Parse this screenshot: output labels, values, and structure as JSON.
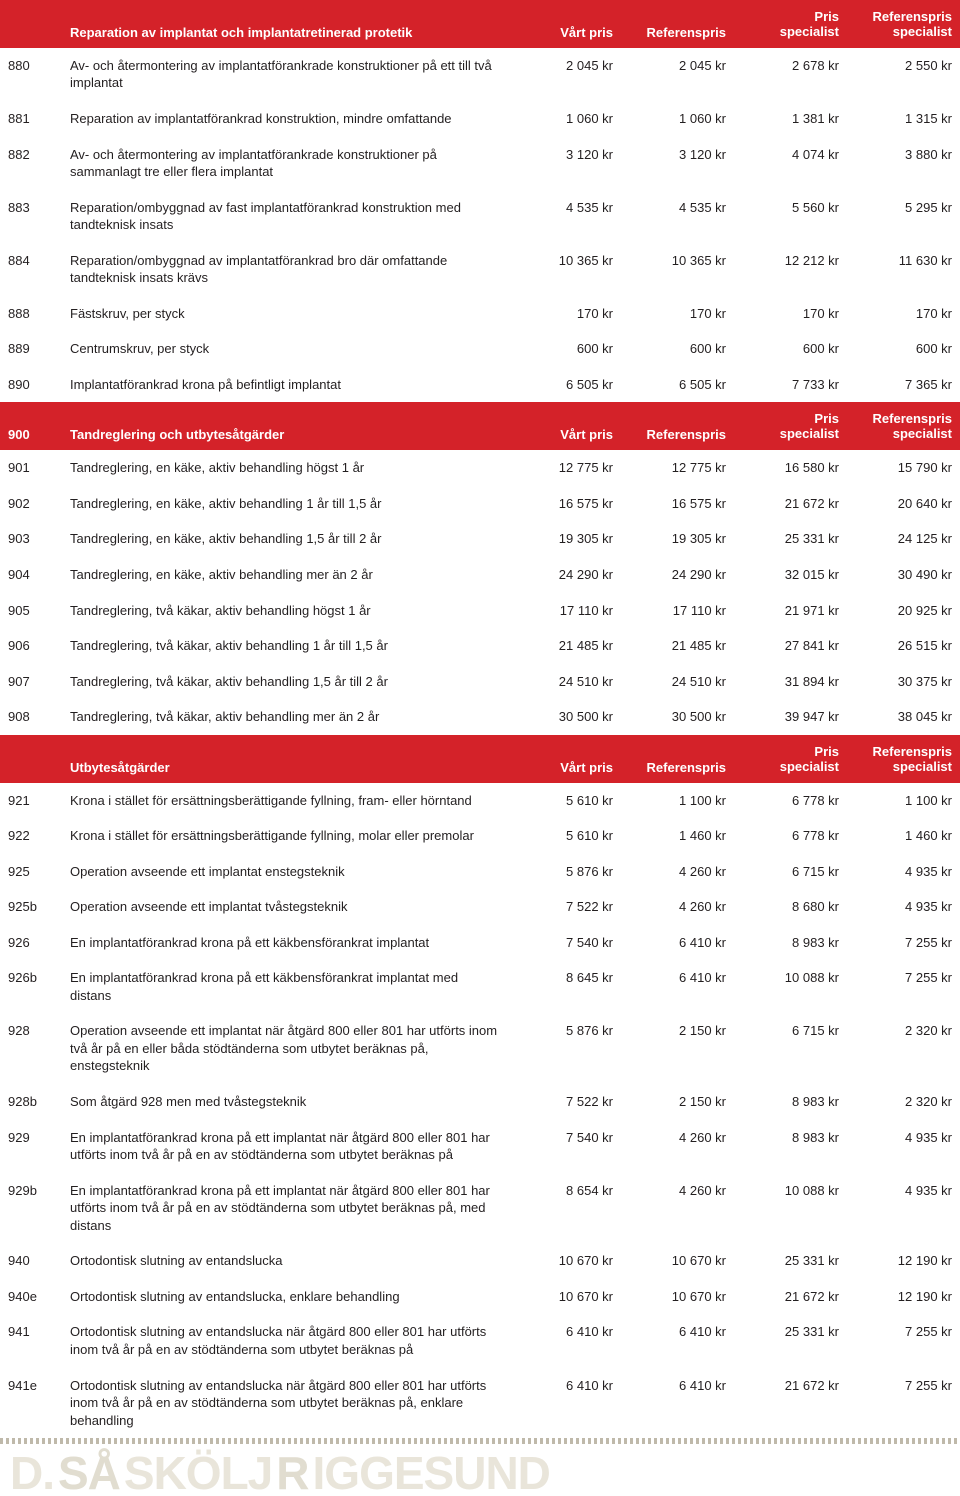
{
  "colors": {
    "header_bg": "#d42229",
    "header_fg": "#ffffff",
    "body_fg": "#231f20",
    "ghost": "#e9e5da"
  },
  "columns": {
    "code": "",
    "desc": "",
    "c1": "Vårt pris",
    "c2": "Referenspris",
    "c3a": "Pris",
    "c3b": "specialist",
    "c4a": "Referenspris",
    "c4b": "specialist"
  },
  "sections": [
    {
      "code": "",
      "title": "Reparation av implantat och implantatretinerad protetik",
      "rows": [
        {
          "code": "880",
          "desc": "Av- och återmontering av implantatförankrade konstruktioner på ett till två implantat",
          "p": [
            "2 045 kr",
            "2 045 kr",
            "2 678 kr",
            "2 550 kr"
          ]
        },
        {
          "code": "881",
          "desc": "Reparation av implantatförankrad konstruktion, mindre omfattande",
          "p": [
            "1 060 kr",
            "1 060 kr",
            "1 381 kr",
            "1 315 kr"
          ]
        },
        {
          "code": "882",
          "desc": "Av- och återmontering av implantatförankrade konstruktioner på sammanlagt tre eller flera implantat",
          "p": [
            "3 120 kr",
            "3 120 kr",
            "4 074 kr",
            "3 880 kr"
          ]
        },
        {
          "code": "883",
          "desc": "Reparation/ombyggnad av fast implantatförankrad konstruktion med tandteknisk insats",
          "p": [
            "4 535 kr",
            "4 535 kr",
            "5 560 kr",
            "5 295 kr"
          ]
        },
        {
          "code": "884",
          "desc": "Reparation/ombyggnad av implantatförankrad bro där omfattande tandteknisk insats krävs",
          "p": [
            "10 365 kr",
            "10 365 kr",
            "12 212 kr",
            "11 630 kr"
          ]
        },
        {
          "code": "888",
          "desc": "Fästskruv, per styck",
          "p": [
            "170 kr",
            "170 kr",
            "170 kr",
            "170 kr"
          ]
        },
        {
          "code": "889",
          "desc": "Centrumskruv, per styck",
          "p": [
            "600 kr",
            "600 kr",
            "600 kr",
            "600 kr"
          ]
        },
        {
          "code": "890",
          "desc": "Implantatförankrad krona på befintligt implantat",
          "p": [
            "6 505 kr",
            "6 505 kr",
            "7 733 kr",
            "7 365 kr"
          ]
        }
      ]
    },
    {
      "code": "900",
      "title": "Tandreglering och utbytesåtgärder",
      "rows": [
        {
          "code": "901",
          "desc": "Tandreglering, en käke, aktiv behandling högst 1 år",
          "p": [
            "12 775 kr",
            "12 775 kr",
            "16 580 kr",
            "15 790 kr"
          ]
        },
        {
          "code": "902",
          "desc": "Tandreglering, en käke, aktiv behandling 1 år till 1,5 år",
          "p": [
            "16 575 kr",
            "16 575 kr",
            "21 672 kr",
            "20 640 kr"
          ]
        },
        {
          "code": "903",
          "desc": "Tandreglering, en käke, aktiv behandling 1,5 år till 2 år",
          "p": [
            "19 305 kr",
            "19 305 kr",
            "25 331 kr",
            "24 125 kr"
          ]
        },
        {
          "code": "904",
          "desc": "Tandreglering, en käke, aktiv behandling mer än 2 år",
          "p": [
            "24 290 kr",
            "24 290 kr",
            "32 015 kr",
            "30 490 kr"
          ]
        },
        {
          "code": "905",
          "desc": "Tandreglering, två käkar, aktiv behandling högst 1 år",
          "p": [
            "17 110 kr",
            "17 110 kr",
            "21 971 kr",
            "20 925 kr"
          ]
        },
        {
          "code": "906",
          "desc": "Tandreglering, två käkar, aktiv behandling 1 år till 1,5 år",
          "p": [
            "21 485 kr",
            "21 485 kr",
            "27 841 kr",
            "26 515 kr"
          ]
        },
        {
          "code": "907",
          "desc": "Tandreglering, två käkar, aktiv behandling 1,5 år till 2 år",
          "p": [
            "24 510 kr",
            "24 510 kr",
            "31 894 kr",
            "30 375 kr"
          ]
        },
        {
          "code": "908",
          "desc": "Tandreglering, två käkar, aktiv behandling mer än 2 år",
          "p": [
            "30 500 kr",
            "30 500 kr",
            "39 947 kr",
            "38 045 kr"
          ]
        }
      ]
    },
    {
      "code": "",
      "title": "Utbytesåtgärder",
      "rows": [
        {
          "code": "921",
          "desc": "Krona i stället för ersättningsberättigande fyllning, fram- eller hörntand",
          "p": [
            "5 610 kr",
            "1 100 kr",
            "6 778 kr",
            "1 100 kr"
          ]
        },
        {
          "code": "922",
          "desc": "Krona i stället för ersättningsberättigande fyllning, molar eller premolar",
          "p": [
            "5 610 kr",
            "1 460 kr",
            "6 778 kr",
            "1 460 kr"
          ]
        },
        {
          "code": "925",
          "desc": "Operation avseende ett implantat enstegsteknik",
          "p": [
            "5 876 kr",
            "4 260 kr",
            "6 715 kr",
            "4 935 kr"
          ]
        },
        {
          "code": "925b",
          "desc": "Operation avseende ett implantat tvåstegsteknik",
          "p": [
            "7 522 kr",
            "4 260 kr",
            "8 680 kr",
            "4 935 kr"
          ]
        },
        {
          "code": "926",
          "desc": "En implantatförankrad krona på ett käkbensförankrat implantat",
          "p": [
            "7 540 kr",
            "6 410 kr",
            "8 983 kr",
            "7 255 kr"
          ]
        },
        {
          "code": "926b",
          "desc": "En implantatförankrad krona på ett käkbensförankrat implantat med distans",
          "p": [
            "8 645 kr",
            "6 410 kr",
            "10 088 kr",
            "7 255 kr"
          ]
        },
        {
          "code": "928",
          "desc": "Operation avseende ett implantat när åtgärd 800 eller 801 har utförts inom två år på en eller båda stödtänderna som utbytet beräknas på, enstegsteknik",
          "p": [
            "5 876 kr",
            "2 150 kr",
            "6 715 kr",
            "2 320 kr"
          ]
        },
        {
          "code": "928b",
          "desc": "Som åtgärd 928 men med tvåstegsteknik",
          "p": [
            "7 522 kr",
            "2 150 kr",
            "8 983 kr",
            "2 320 kr"
          ]
        },
        {
          "code": "929",
          "desc": "En implantatförankrad krona på ett implantat när åtgärd 800 eller 801 har utförts inom två år på en av stödtänderna som utbytet beräknas på",
          "p": [
            "7 540 kr",
            "4 260 kr",
            "8 983 kr",
            "4 935 kr"
          ]
        },
        {
          "code": "929b",
          "desc": "En implantatförankrad krona på ett implantat när åtgärd 800 eller 801 har utförts inom två år på en av stödtänderna som utbytet beräknas på, med distans",
          "p": [
            "8 654 kr",
            "4 260 kr",
            "10 088 kr",
            "4 935 kr"
          ]
        },
        {
          "code": "940",
          "desc": "Ortodontisk slutning av entandslucka",
          "p": [
            "10 670 kr",
            "10 670 kr",
            "25 331 kr",
            "12 190 kr"
          ]
        },
        {
          "code": "940e",
          "desc": "Ortodontisk slutning av entandslucka, enklare behandling",
          "p": [
            "10 670 kr",
            "10 670 kr",
            "21 672 kr",
            "12 190 kr"
          ]
        },
        {
          "code": "941",
          "desc": "Ortodontisk slutning av entandslucka när åtgärd 800 eller 801 har utförts inom två år på en av stödtänderna som utbytet beräknas på",
          "p": [
            "6 410 kr",
            "6 410 kr",
            "25 331 kr",
            "7 255 kr"
          ]
        },
        {
          "code": "941e",
          "desc": "Ortodontisk slutning av entandslucka när åtgärd 800 eller 801 har utförts inom två år på en av stödtänderna som utbytet beräknas på, enklare behandling",
          "p": [
            "6 410 kr",
            "6 410 kr",
            "21 672 kr",
            "7 255 kr"
          ]
        }
      ]
    }
  ],
  "footer_words": [
    "D.",
    "SÅ",
    "SKÖLJ",
    "R",
    "IGGESUND"
  ]
}
